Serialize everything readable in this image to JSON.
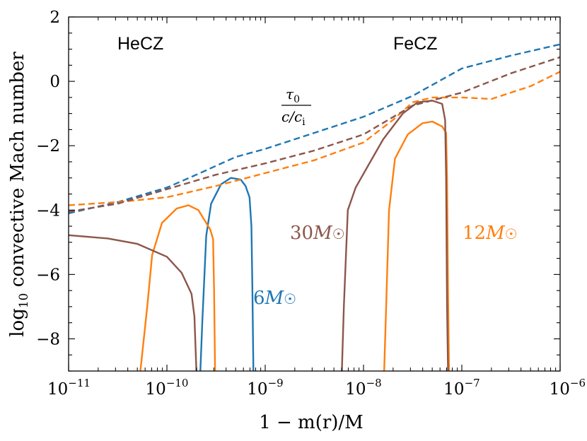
{
  "chart_data": {
    "type": "line",
    "xscale": "log",
    "xlim": [
      1e-11,
      1e-06
    ],
    "ylim": [
      -9,
      2
    ],
    "xlabel": "1 − m(r)/M",
    "ylabel_main": "log",
    "ylabel_sub": "10",
    "ylabel_rest": " convective Mach number",
    "x_ticks": [
      {
        "base": "10",
        "exp": "−11",
        "value": 1e-11
      },
      {
        "base": "10",
        "exp": "−10",
        "value": 1e-10
      },
      {
        "base": "10",
        "exp": "−9",
        "value": 1e-09
      },
      {
        "base": "10",
        "exp": "−8",
        "value": 1e-08
      },
      {
        "base": "10",
        "exp": "−7",
        "value": 1e-07
      },
      {
        "base": "10",
        "exp": "−6",
        "value": 1e-06
      }
    ],
    "y_ticks": [
      {
        "label": "2",
        "value": 2
      },
      {
        "label": "0",
        "value": 0
      },
      {
        "label": "−2",
        "value": -2
      },
      {
        "label": "−4",
        "value": -4
      },
      {
        "label": "−6",
        "value": -6
      },
      {
        "label": "−8",
        "value": -8
      }
    ],
    "annotations": {
      "hecz": "HeCZ",
      "fecz": "FeCZ",
      "tau_num": "τ",
      "tau_num_sub": "0",
      "tau_den": "c/c",
      "tau_den_sub": "i"
    },
    "series": [
      {
        "name": "6M☉ convective",
        "label_num": "6",
        "label_M": "M",
        "label_sun": "☉",
        "color": "#1f77b4",
        "style": "solid",
        "points": [
          [
            -9.66,
            -9.0
          ],
          [
            -9.64,
            -7.5
          ],
          [
            -9.6,
            -4.8
          ],
          [
            -9.55,
            -3.8
          ],
          [
            -9.45,
            -3.2
          ],
          [
            -9.35,
            -3.0
          ],
          [
            -9.25,
            -3.05
          ],
          [
            -9.2,
            -3.25
          ],
          [
            -9.16,
            -3.6
          ],
          [
            -9.14,
            -4.5
          ],
          [
            -9.13,
            -6.5
          ],
          [
            -9.12,
            -9.0
          ]
        ]
      },
      {
        "name": "12M☉ convective",
        "label_num": "12",
        "label_M": "M",
        "label_sun": "☉",
        "color": "#ff7f0e",
        "style": "solid",
        "points": [
          [
            -10.27,
            -9.0
          ],
          [
            -10.2,
            -7.0
          ],
          [
            -10.15,
            -5.4
          ],
          [
            -10.05,
            -4.4
          ],
          [
            -9.9,
            -3.95
          ],
          [
            -9.78,
            -3.85
          ],
          [
            -9.68,
            -4.0
          ],
          [
            -9.56,
            -4.6
          ],
          [
            -9.53,
            -4.9
          ],
          [
            -9.52,
            -6.5
          ],
          [
            -9.51,
            -9.0
          ],
          null,
          [
            -7.79,
            -9.0
          ],
          [
            -7.77,
            -7.0
          ],
          [
            -7.74,
            -4.0
          ],
          [
            -7.68,
            -2.4
          ],
          [
            -7.55,
            -1.65
          ],
          [
            -7.4,
            -1.3
          ],
          [
            -7.3,
            -1.25
          ],
          [
            -7.2,
            -1.4
          ],
          [
            -7.16,
            -1.6
          ],
          [
            -7.15,
            -3.0
          ],
          [
            -7.14,
            -6.5
          ],
          [
            -7.13,
            -9.0
          ]
        ]
      },
      {
        "name": "30M☉ convective",
        "label_num": "30",
        "label_M": "M",
        "label_sun": "☉",
        "color": "#8c564b",
        "style": "solid",
        "points": [
          [
            -11.0,
            -4.78
          ],
          [
            -10.6,
            -4.88
          ],
          [
            -10.3,
            -5.05
          ],
          [
            -10.0,
            -5.45
          ],
          [
            -9.85,
            -5.95
          ],
          [
            -9.75,
            -6.6
          ],
          [
            -9.72,
            -7.3
          ],
          [
            -9.7,
            -9.0
          ],
          null,
          [
            -8.22,
            -9.0
          ],
          [
            -8.2,
            -7.0
          ],
          [
            -8.16,
            -4.0
          ],
          [
            -8.08,
            -3.3
          ],
          [
            -7.95,
            -2.6
          ],
          [
            -7.8,
            -1.8
          ],
          [
            -7.6,
            -1.0
          ],
          [
            -7.45,
            -0.65
          ],
          [
            -7.3,
            -0.6
          ],
          [
            -7.2,
            -0.7
          ],
          [
            -7.17,
            -1.2
          ],
          [
            -7.16,
            -3.0
          ],
          [
            -7.15,
            -7.0
          ],
          [
            -7.14,
            -9.0
          ]
        ]
      },
      {
        "name": "6M☉ tau0/(c/ci)",
        "color": "#1f77b4",
        "style": "dashed",
        "points": [
          [
            -11.0,
            -4.1
          ],
          [
            -10.5,
            -3.75
          ],
          [
            -10.0,
            -3.3
          ],
          [
            -9.7,
            -2.9
          ],
          [
            -9.3,
            -2.35
          ],
          [
            -9.0,
            -2.1
          ],
          [
            -8.5,
            -1.6
          ],
          [
            -8.0,
            -1.1
          ],
          [
            -7.5,
            -0.45
          ],
          [
            -7.0,
            0.4
          ],
          [
            -6.5,
            0.8
          ],
          [
            -6.0,
            1.15
          ]
        ]
      },
      {
        "name": "12M☉ tau0/(c/ci)",
        "color": "#ff7f0e",
        "style": "dashed",
        "points": [
          [
            -11.0,
            -3.85
          ],
          [
            -10.5,
            -3.75
          ],
          [
            -10.0,
            -3.6
          ],
          [
            -9.5,
            -3.25
          ],
          [
            -9.0,
            -2.85
          ],
          [
            -8.5,
            -2.45
          ],
          [
            -8.0,
            -1.9
          ],
          [
            -7.7,
            -1.2
          ],
          [
            -7.5,
            -0.65
          ],
          [
            -7.3,
            -0.5
          ],
          [
            -7.0,
            -0.5
          ],
          [
            -6.7,
            -0.55
          ],
          [
            -6.3,
            -0.15
          ],
          [
            -6.0,
            0.3
          ]
        ]
      },
      {
        "name": "30M☉ tau0/(c/ci)",
        "color": "#8c564b",
        "style": "dashed",
        "points": [
          [
            -11.0,
            -4.05
          ],
          [
            -10.5,
            -3.8
          ],
          [
            -10.0,
            -3.35
          ],
          [
            -9.5,
            -2.9
          ],
          [
            -9.0,
            -2.55
          ],
          [
            -8.5,
            -2.15
          ],
          [
            -8.0,
            -1.65
          ],
          [
            -7.5,
            -0.75
          ],
          [
            -7.0,
            -0.35
          ],
          [
            -6.5,
            0.25
          ],
          [
            -6.0,
            0.75
          ]
        ]
      }
    ]
  }
}
